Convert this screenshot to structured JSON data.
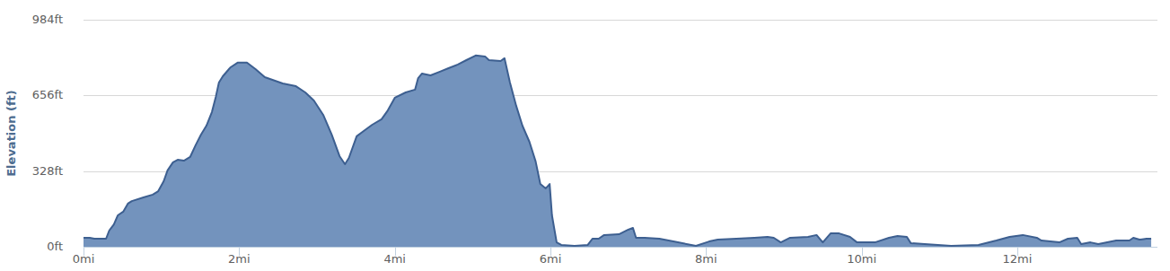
{
  "chart_data": {
    "type": "area",
    "y_label": "Elevation (ft)",
    "color": "#7393bd",
    "grid": true,
    "xlim": [
      0,
      13.8
    ],
    "ylim": [
      0,
      984
    ],
    "xticks": [
      {
        "value": 0,
        "label": "0mi"
      },
      {
        "value": 2,
        "label": "2mi"
      },
      {
        "value": 4,
        "label": "4mi"
      },
      {
        "value": 6,
        "label": "6mi"
      },
      {
        "value": 8,
        "label": "8mi"
      },
      {
        "value": 10,
        "label": "10mi"
      },
      {
        "value": 12,
        "label": "12mi"
      }
    ],
    "yticks": [
      {
        "value": 0,
        "label": "0ft"
      },
      {
        "value": 328,
        "label": "328ft"
      },
      {
        "value": 656,
        "label": "656ft"
      },
      {
        "value": 984,
        "label": "984ft"
      }
    ],
    "x": [
      0,
      0.08,
      0.14,
      0.29,
      0.33,
      0.39,
      0.44,
      0.51,
      0.57,
      0.62,
      0.77,
      0.89,
      0.96,
      1.03,
      1.08,
      1.15,
      1.21,
      1.29,
      1.37,
      1.44,
      1.51,
      1.58,
      1.65,
      1.7,
      1.74,
      1.79,
      1.89,
      1.98,
      2.1,
      2.21,
      2.33,
      2.56,
      2.73,
      2.85,
      2.96,
      3.08,
      3.19,
      3.29,
      3.36,
      3.41,
      3.51,
      3.6,
      3.71,
      3.83,
      3.91,
      4.0,
      4.14,
      4.26,
      4.3,
      4.35,
      4.46,
      4.58,
      4.69,
      4.81,
      4.92,
      5.04,
      5.16,
      5.21,
      5.36,
      5.41,
      5.48,
      5.56,
      5.64,
      5.73,
      5.81,
      5.87,
      5.94,
      5.99,
      6.02,
      6.08,
      6.14,
      6.31,
      6.48,
      6.54,
      6.62,
      6.69,
      6.88,
      7.0,
      7.06,
      7.1,
      7.21,
      7.4,
      7.58,
      7.81,
      7.87,
      8.04,
      8.15,
      8.39,
      8.62,
      8.79,
      8.87,
      8.96,
      9.08,
      9.31,
      9.42,
      9.5,
      9.6,
      9.71,
      9.85,
      9.94,
      10.17,
      10.35,
      10.46,
      10.58,
      10.63,
      10.81,
      11.15,
      11.5,
      11.73,
      11.9,
      12.07,
      12.25,
      12.31,
      12.54,
      12.65,
      12.77,
      12.82,
      12.94,
      13.04,
      13.27,
      13.44,
      13.49,
      13.57,
      13.66,
      13.72
    ],
    "values": [
      39,
      39,
      35,
      35,
      70,
      97,
      136,
      152,
      187,
      198,
      214,
      226,
      241,
      284,
      331,
      366,
      377,
      373,
      389,
      440,
      486,
      525,
      584,
      650,
      712,
      739,
      778,
      798,
      798,
      770,
      735,
      708,
      696,
      669,
      634,
      572,
      486,
      393,
      358,
      385,
      479,
      502,
      529,
      553,
      591,
      646,
      669,
      681,
      731,
      751,
      743,
      759,
      774,
      790,
      809,
      829,
      825,
      809,
      805,
      817,
      712,
      611,
      525,
      455,
      370,
      272,
      253,
      272,
      136,
      19,
      8,
      4,
      8,
      35,
      35,
      51,
      54,
      74,
      82,
      39,
      39,
      35,
      23,
      8,
      4,
      23,
      31,
      35,
      39,
      43,
      39,
      19,
      39,
      43,
      51,
      19,
      58,
      58,
      43,
      19,
      19,
      39,
      47,
      43,
      16,
      12,
      4,
      8,
      27,
      43,
      51,
      39,
      27,
      19,
      35,
      39,
      12,
      19,
      12,
      27,
      27,
      39,
      31,
      35,
      35
    ]
  }
}
